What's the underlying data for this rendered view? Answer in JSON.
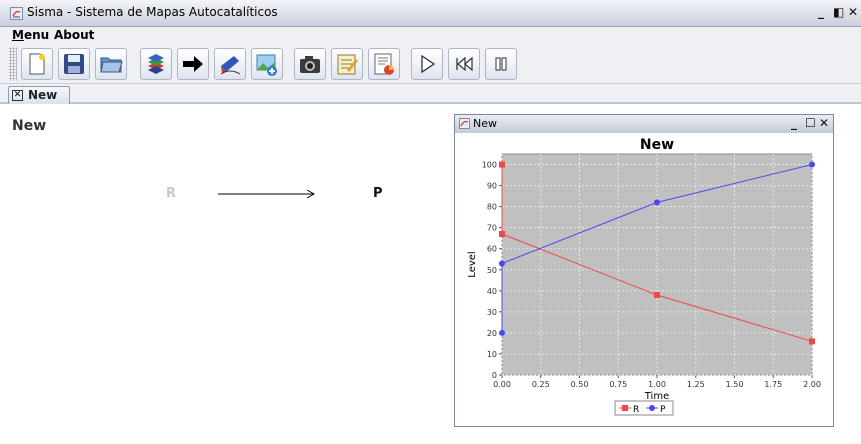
{
  "window": {
    "title": "Sisma - Sistema de Mapas Autocatalíticos",
    "controls": [
      "_",
      "◧",
      "✕"
    ]
  },
  "menubar": {
    "items": [
      "Menu",
      "About"
    ]
  },
  "toolbar": {
    "buttons": [
      "new-file-icon",
      "save-icon",
      "open-folder-icon",
      "layers-icon",
      "arrow-icon",
      "edit-shape-icon",
      "add-image-icon",
      "camera-icon",
      "notepad-icon",
      "report-icon",
      "play-icon",
      "rewind-icon",
      "pause-icon"
    ]
  },
  "tabs": [
    {
      "label": "New",
      "close_glyph": "✕"
    }
  ],
  "canvas": {
    "title": "New",
    "reaction": {
      "reactant": "R",
      "product": "P"
    }
  },
  "chart_window": {
    "title": "New",
    "controls": [
      "_",
      "☐",
      "✕"
    ]
  },
  "chart_data": {
    "type": "line",
    "title": "New",
    "xlabel": "Time",
    "ylabel": "Level",
    "xlim": [
      0,
      2
    ],
    "ylim": [
      0,
      105
    ],
    "xticks": [
      "0.00",
      "0.25",
      "0.50",
      "0.75",
      "1.00",
      "1.25",
      "1.50",
      "1.75",
      "2.00"
    ],
    "yticks": [
      "0",
      "10",
      "20",
      "30",
      "40",
      "50",
      "60",
      "70",
      "80",
      "90",
      "100"
    ],
    "grid": true,
    "legend": "bottom",
    "series": [
      {
        "name": "R",
        "color": "#f04848",
        "marker": "square",
        "x": [
          0,
          0,
          1,
          2
        ],
        "y": [
          100,
          67,
          38,
          16
        ]
      },
      {
        "name": "P",
        "color": "#4a4af0",
        "marker": "circle",
        "x": [
          0,
          0,
          1,
          2
        ],
        "y": [
          20,
          53,
          82,
          100
        ]
      }
    ]
  }
}
